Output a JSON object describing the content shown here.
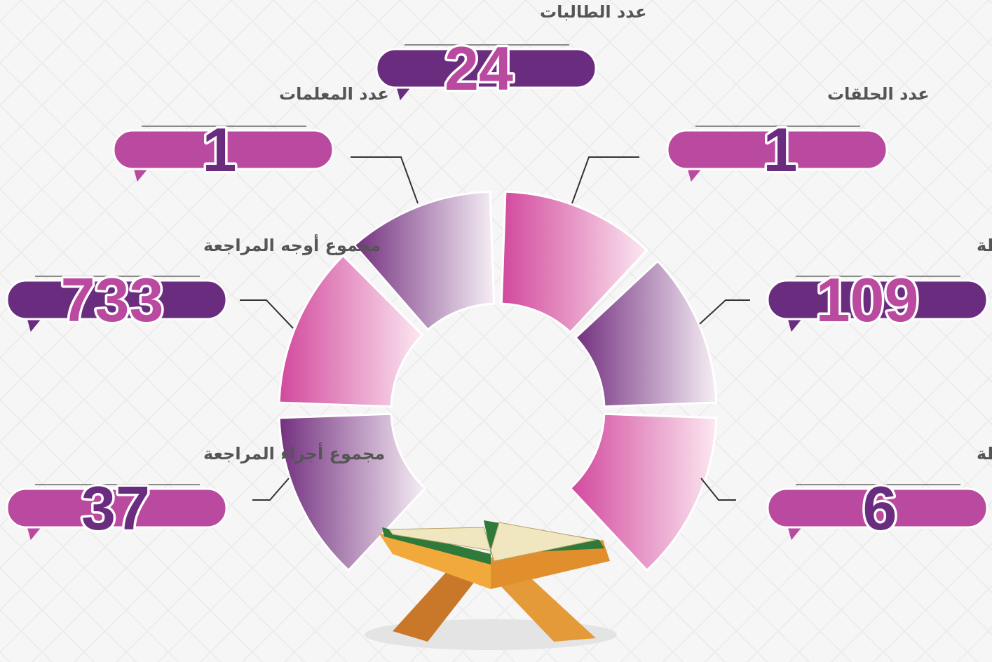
{
  "stats": [
    {
      "label": "عدد الطالبات",
      "value": 24
    },
    {
      "label": "عدد المعلمات",
      "value": 1
    },
    {
      "label": "عدد الحلقات",
      "value": 1
    },
    {
      "label": "مجموع أوجه المراجعة",
      "value": 733
    },
    {
      "label": "مجموع الأوجه المحفوظة",
      "value": 109
    },
    {
      "label": "مجموع أجزاء المراجعة",
      "value": 37
    },
    {
      "label": "مجموع الأجزاء المحفوظة",
      "value": 6
    }
  ]
}
